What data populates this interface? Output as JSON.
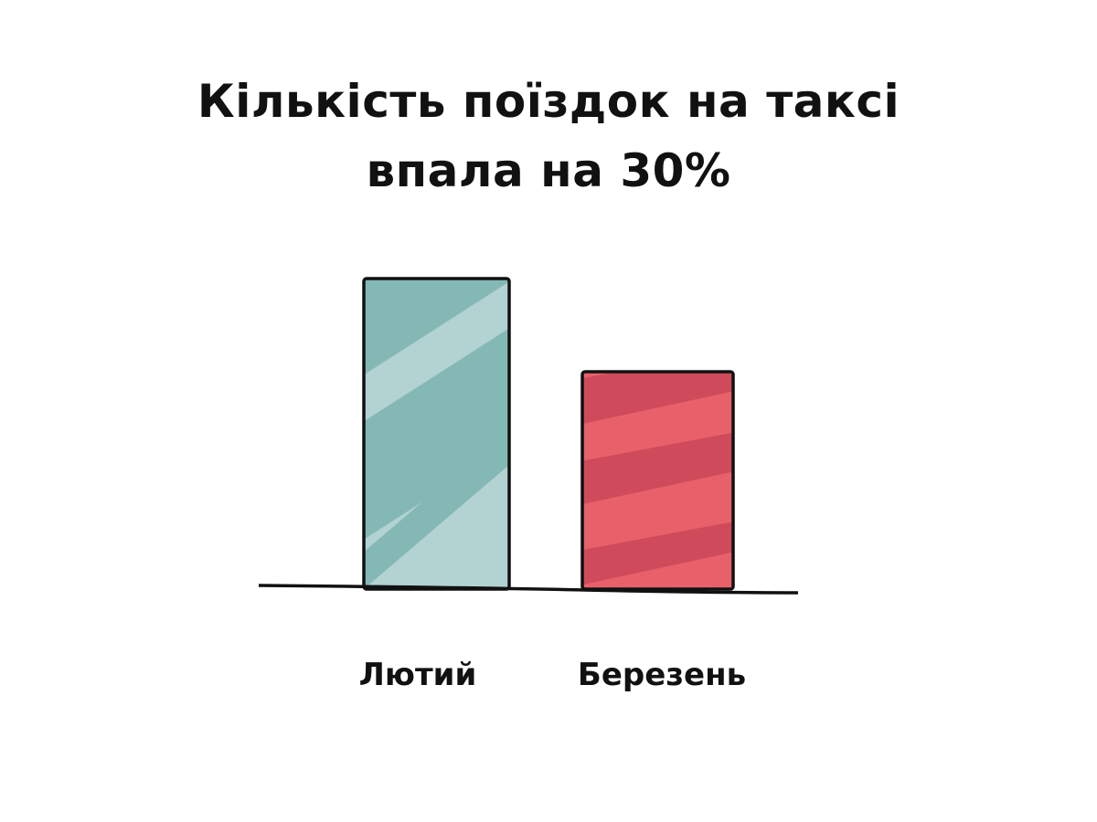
{
  "chart_data": {
    "type": "bar",
    "title_lines": [
      "Кількість поїздок на таксі",
      "впала на 30%"
    ],
    "categories": [
      "Лютий",
      "Березень"
    ],
    "values": [
      100,
      70
    ],
    "value_units": "relative index (no axis printed)",
    "ylim": [
      0,
      100
    ],
    "grid": false,
    "colors": [
      {
        "light": "#b3d2d2",
        "dark": "#84b8b5"
      },
      {
        "light": "#e8616a",
        "dark": "#cf4b5b"
      }
    ],
    "outline_color": "#111111"
  }
}
